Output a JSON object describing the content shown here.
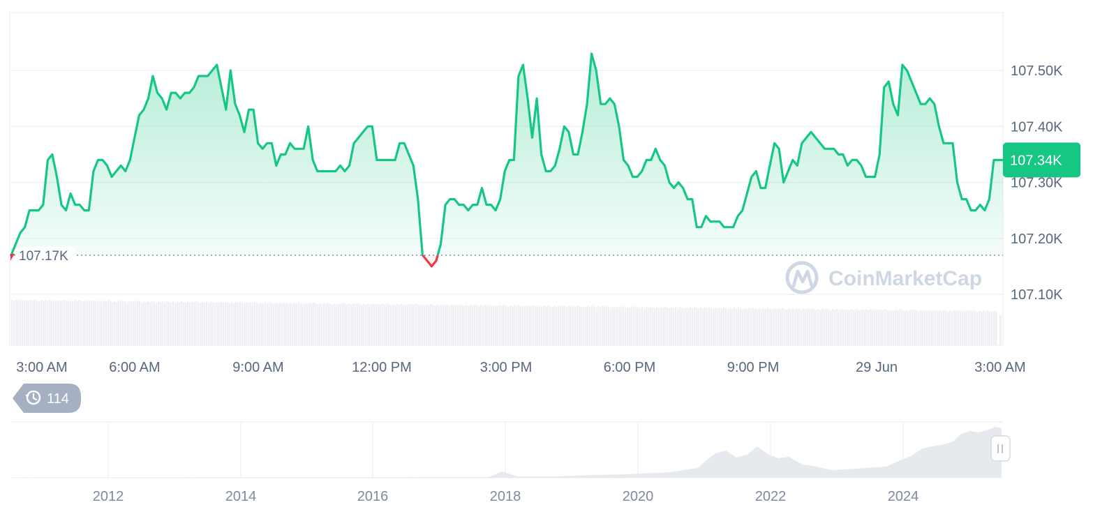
{
  "chart_data": {
    "type": "area",
    "price_axis": {
      "min": 107.02,
      "max": 107.6,
      "ticks": [
        {
          "value": 107.5,
          "label": "107.50K"
        },
        {
          "value": 107.4,
          "label": "107.40K"
        },
        {
          "value": 107.3,
          "label": "107.30K"
        },
        {
          "value": 107.2,
          "label": "107.20K"
        },
        {
          "value": 107.1,
          "label": "107.10K"
        }
      ],
      "unit": "K"
    },
    "time_axis": {
      "ticks": [
        "3:00 AM",
        "6:00 AM",
        "9:00 AM",
        "12:00 PM",
        "3:00 PM",
        "6:00 PM",
        "9:00 PM",
        "29 Jun",
        "3:00 AM"
      ]
    },
    "reference_line": {
      "value": 107.17,
      "label": "107.17K"
    },
    "current_price": {
      "value": 107.34,
      "label": "107.34K"
    },
    "colors": {
      "up": "#16c784",
      "down": "#ea3943",
      "grid": "#eff2f5",
      "tag_bg": "#16c784"
    },
    "price_series": [
      107.17,
      107.19,
      107.21,
      107.22,
      107.25,
      107.25,
      107.25,
      107.26,
      107.34,
      107.35,
      107.31,
      107.26,
      107.25,
      107.28,
      107.26,
      107.26,
      107.25,
      107.25,
      107.32,
      107.34,
      107.34,
      107.33,
      107.31,
      107.32,
      107.33,
      107.32,
      107.34,
      107.38,
      107.42,
      107.43,
      107.45,
      107.49,
      107.46,
      107.45,
      107.43,
      107.46,
      107.46,
      107.45,
      107.46,
      107.46,
      107.47,
      107.49,
      107.49,
      107.49,
      107.5,
      107.51,
      107.47,
      107.43,
      107.5,
      107.44,
      107.42,
      107.39,
      107.43,
      107.43,
      107.37,
      107.36,
      107.37,
      107.37,
      107.33,
      107.35,
      107.35,
      107.37,
      107.36,
      107.36,
      107.36,
      107.4,
      107.34,
      107.32,
      107.32,
      107.32,
      107.32,
      107.32,
      107.33,
      107.32,
      107.33,
      107.37,
      107.38,
      107.39,
      107.4,
      107.4,
      107.34,
      107.34,
      107.34,
      107.34,
      107.34,
      107.37,
      107.37,
      107.35,
      107.33,
      107.27,
      107.17,
      107.16,
      107.15,
      107.16,
      107.19,
      107.26,
      107.27,
      107.27,
      107.26,
      107.26,
      107.25,
      107.26,
      107.26,
      107.29,
      107.26,
      107.26,
      107.25,
      107.27,
      107.32,
      107.34,
      107.34,
      107.49,
      107.51,
      107.45,
      107.38,
      107.45,
      107.35,
      107.32,
      107.32,
      107.33,
      107.36,
      107.4,
      107.39,
      107.35,
      107.35,
      107.39,
      107.44,
      107.53,
      107.5,
      107.44,
      107.44,
      107.45,
      107.44,
      107.4,
      107.34,
      107.33,
      107.31,
      107.31,
      107.32,
      107.34,
      107.34,
      107.36,
      107.34,
      107.33,
      107.3,
      107.29,
      107.3,
      107.29,
      107.27,
      107.27,
      107.22,
      107.22,
      107.24,
      107.23,
      107.23,
      107.23,
      107.22,
      107.22,
      107.22,
      107.24,
      107.25,
      107.28,
      107.31,
      107.32,
      107.29,
      107.29,
      107.33,
      107.37,
      107.36,
      107.3,
      107.32,
      107.34,
      107.33,
      107.37,
      107.38,
      107.39,
      107.38,
      107.37,
      107.36,
      107.36,
      107.36,
      107.35,
      107.35,
      107.33,
      107.34,
      107.34,
      107.33,
      107.31,
      107.31,
      107.31,
      107.35,
      107.47,
      107.48,
      107.44,
      107.42,
      107.51,
      107.5,
      107.48,
      107.46,
      107.44,
      107.44,
      107.45,
      107.44,
      107.4,
      107.37,
      107.37,
      107.37,
      107.3,
      107.27,
      107.27,
      107.25,
      107.25,
      107.26,
      107.25,
      107.27,
      107.34,
      107.34,
      107.34
    ]
  },
  "watermark": {
    "text": "CoinMarketCap"
  },
  "history_badge": {
    "count": "114",
    "icon": "history-icon"
  },
  "navigator": {
    "year_labels": [
      "2012",
      "2014",
      "2016",
      "2018",
      "2020",
      "2022",
      "2024"
    ],
    "handle_icon": "pause-bars-icon"
  }
}
